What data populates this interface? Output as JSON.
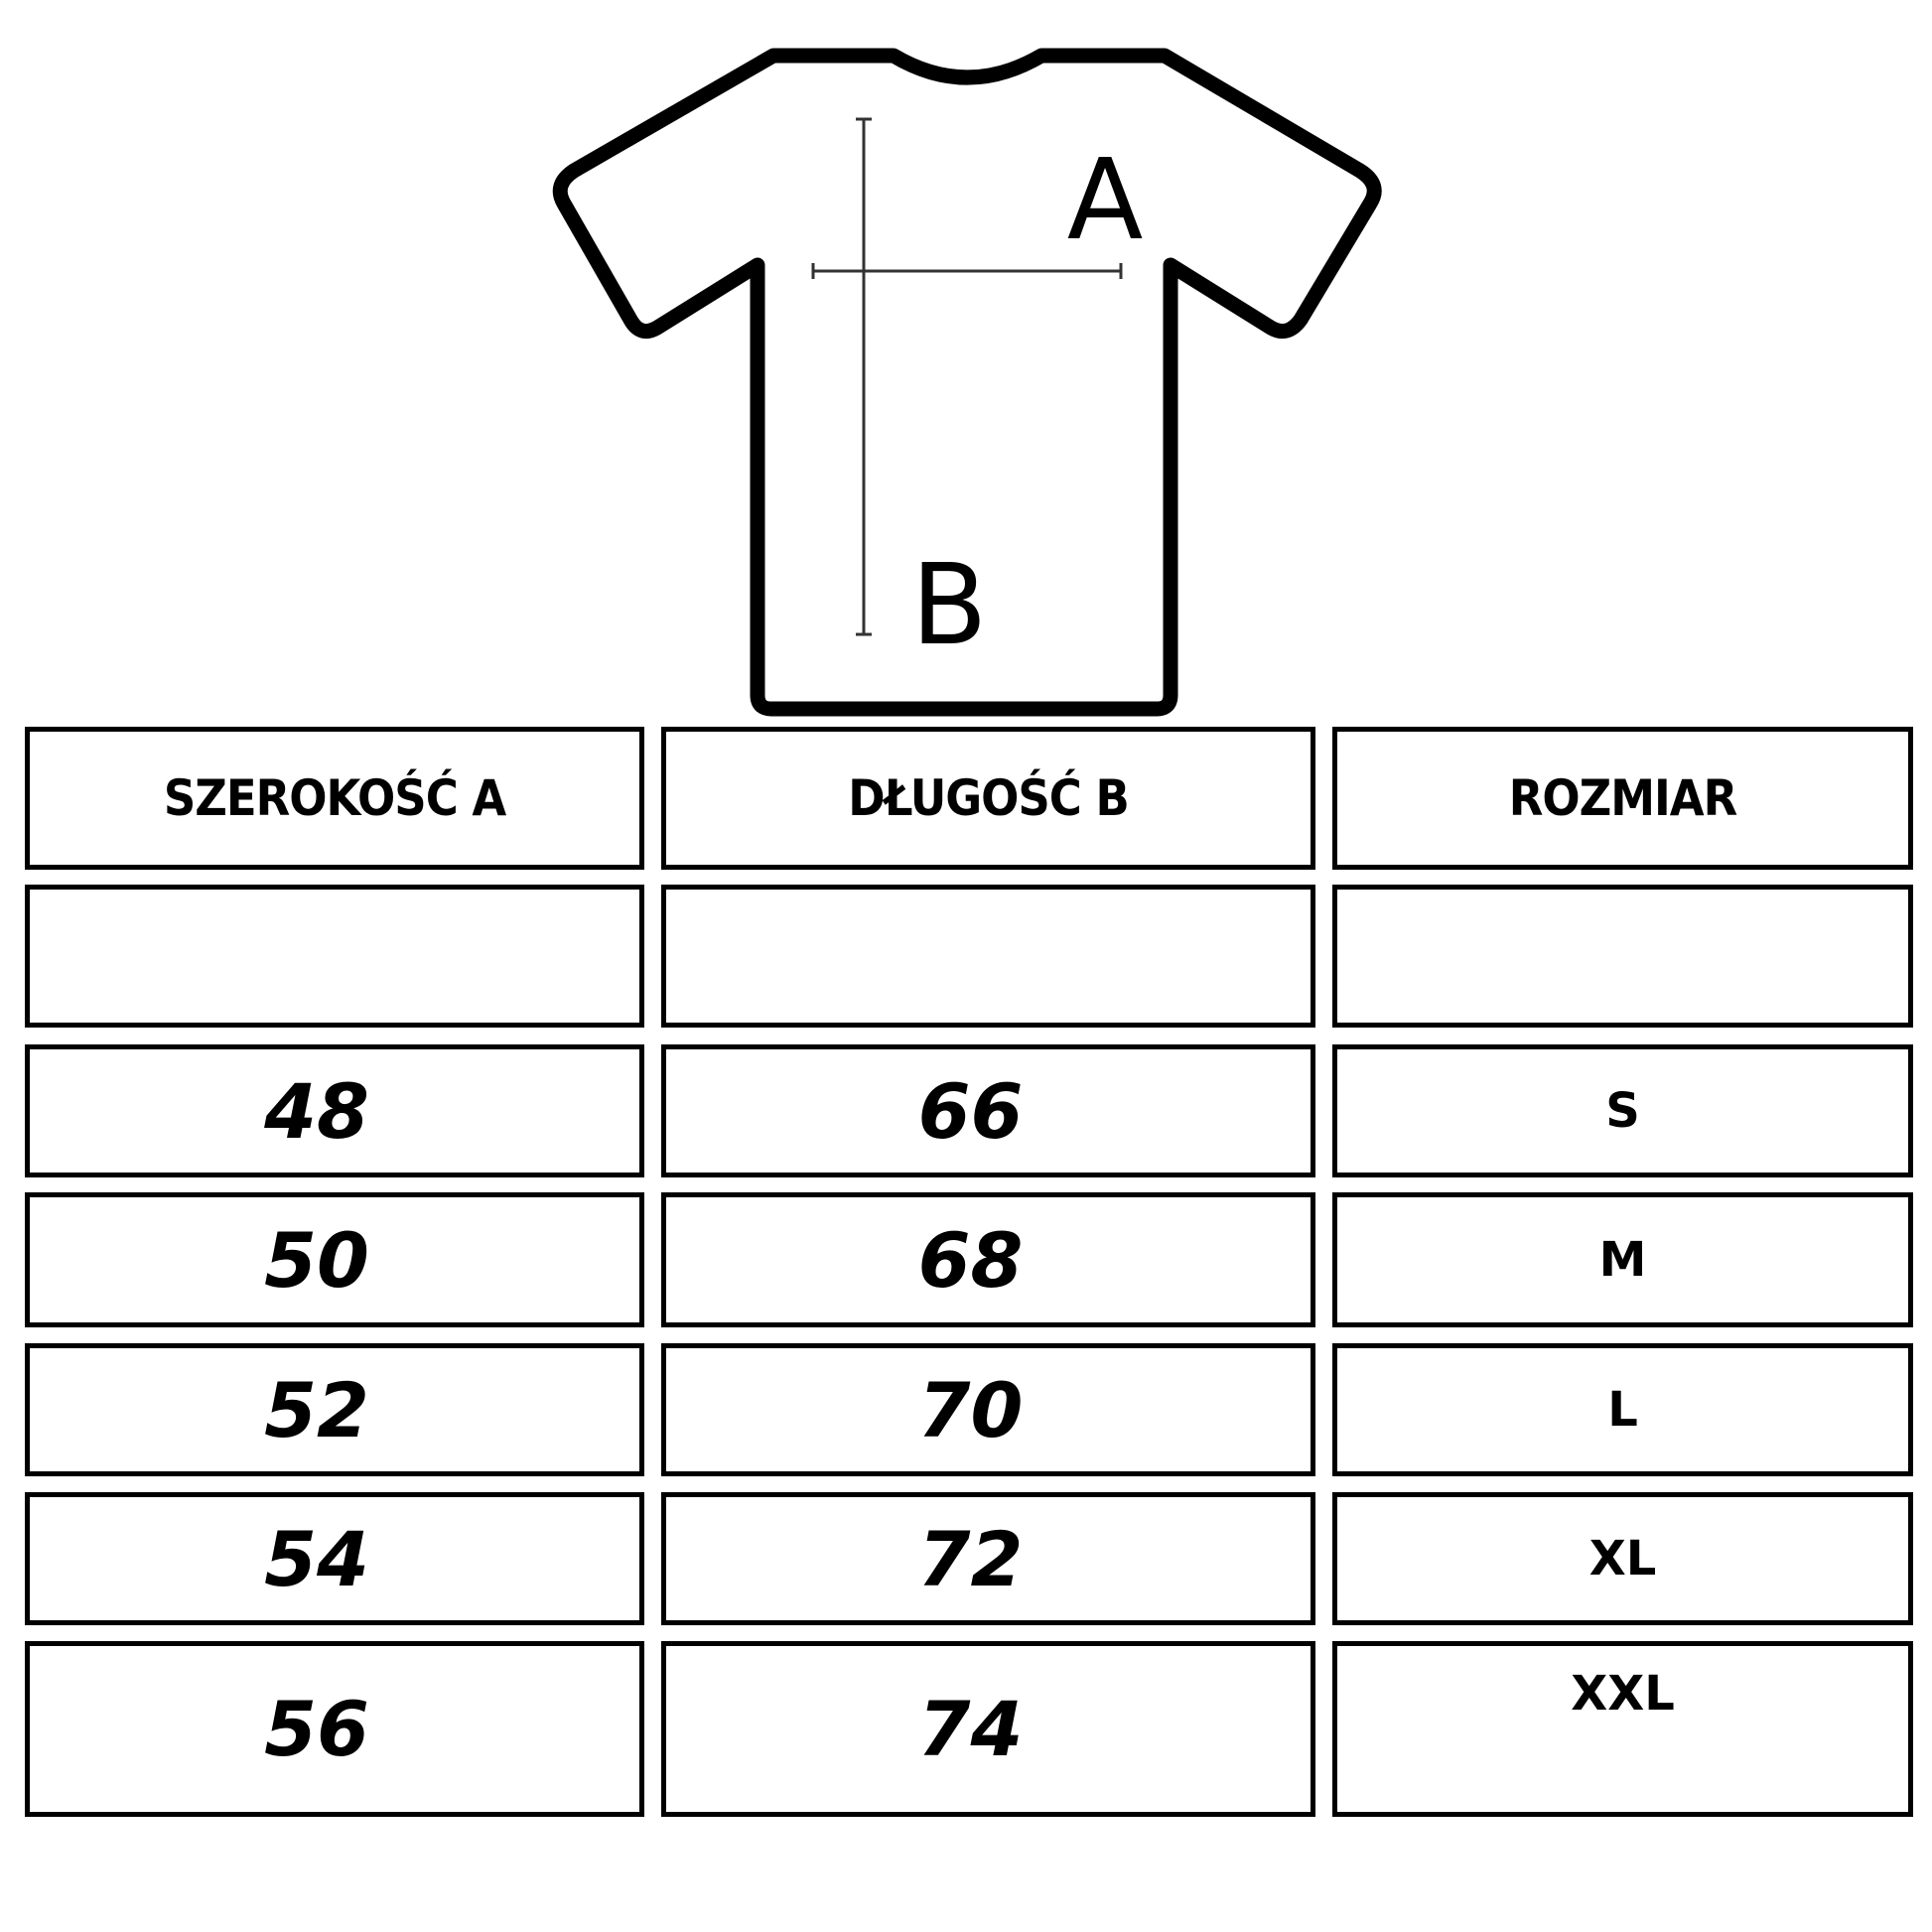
{
  "diagram": {
    "label_a": "A",
    "label_b": "B"
  },
  "table": {
    "headers": [
      "SZEROKOŚĆ A",
      "DŁUGOŚĆ B",
      "ROZMIAR"
    ],
    "rows": [
      {
        "width": "",
        "length": "",
        "size": ""
      },
      {
        "width": "48",
        "length": "66",
        "size": "S"
      },
      {
        "width": "50",
        "length": "68",
        "size": "M"
      },
      {
        "width": "52",
        "length": "70",
        "size": "L"
      },
      {
        "width": "54",
        "length": "72",
        "size": "XL"
      },
      {
        "width": "56",
        "length": "74",
        "size": "XXL"
      }
    ]
  }
}
